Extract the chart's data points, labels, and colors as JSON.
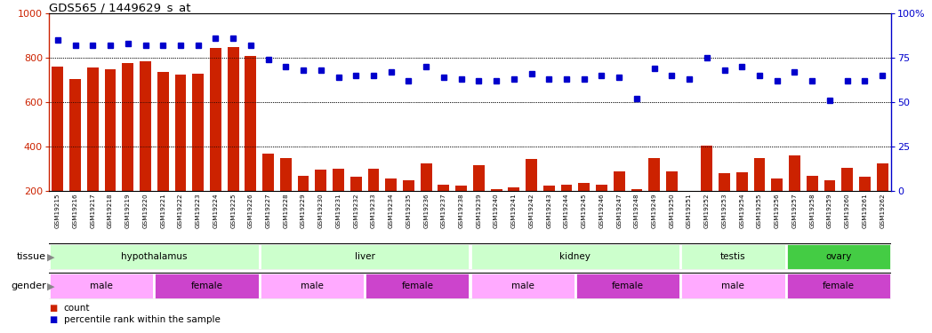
{
  "title": "GDS565 / 1449629_s_at",
  "samples": [
    "GSM19215",
    "GSM19216",
    "GSM19217",
    "GSM19218",
    "GSM19219",
    "GSM19220",
    "GSM19221",
    "GSM19222",
    "GSM19223",
    "GSM19224",
    "GSM19225",
    "GSM19226",
    "GSM19227",
    "GSM19228",
    "GSM19229",
    "GSM19230",
    "GSM19231",
    "GSM19232",
    "GSM19233",
    "GSM19234",
    "GSM19235",
    "GSM19236",
    "GSM19237",
    "GSM19238",
    "GSM19239",
    "GSM19240",
    "GSM19241",
    "GSM19242",
    "GSM19243",
    "GSM19244",
    "GSM19245",
    "GSM19246",
    "GSM19247",
    "GSM19248",
    "GSM19249",
    "GSM19250",
    "GSM19251",
    "GSM19252",
    "GSM19253",
    "GSM19254",
    "GSM19255",
    "GSM19256",
    "GSM19257",
    "GSM19258",
    "GSM19259",
    "GSM19260",
    "GSM19261",
    "GSM19262"
  ],
  "counts": [
    760,
    705,
    755,
    750,
    775,
    785,
    735,
    725,
    730,
    845,
    850,
    810,
    370,
    350,
    270,
    295,
    300,
    265,
    300,
    255,
    250,
    325,
    230,
    225,
    315,
    210,
    215,
    345,
    225,
    230,
    235,
    230,
    290,
    210,
    350,
    290,
    200,
    405,
    280,
    285,
    350,
    255,
    360,
    270,
    250,
    305,
    265,
    325
  ],
  "percentile": [
    85,
    82,
    82,
    82,
    83,
    82,
    82,
    82,
    82,
    86,
    86,
    82,
    74,
    70,
    68,
    68,
    64,
    65,
    65,
    67,
    62,
    70,
    64,
    63,
    62,
    62,
    63,
    66,
    63,
    63,
    63,
    65,
    64,
    52,
    69,
    65,
    63,
    75,
    68,
    70,
    65,
    62,
    67,
    62,
    51,
    62,
    62,
    65
  ],
  "ylim_left": [
    200,
    1000
  ],
  "ylim_right": [
    0,
    100
  ],
  "yticks_left": [
    200,
    400,
    600,
    800,
    1000
  ],
  "yticks_right": [
    0,
    25,
    50,
    75,
    100
  ],
  "bar_color": "#cc2200",
  "dot_color": "#0000cc",
  "tissue_groups": [
    {
      "label": "hypothalamus",
      "start": 0,
      "end": 11,
      "color": "#ccffcc"
    },
    {
      "label": "liver",
      "start": 12,
      "end": 23,
      "color": "#ccffcc"
    },
    {
      "label": "kidney",
      "start": 24,
      "end": 35,
      "color": "#ccffcc"
    },
    {
      "label": "testis",
      "start": 36,
      "end": 41,
      "color": "#ccffcc"
    },
    {
      "label": "ovary",
      "start": 42,
      "end": 47,
      "color": "#44cc44"
    }
  ],
  "gender_groups": [
    {
      "label": "male",
      "start": 0,
      "end": 5,
      "color": "#ffaaff"
    },
    {
      "label": "female",
      "start": 6,
      "end": 11,
      "color": "#cc44cc"
    },
    {
      "label": "male",
      "start": 12,
      "end": 17,
      "color": "#ffaaff"
    },
    {
      "label": "female",
      "start": 18,
      "end": 23,
      "color": "#cc44cc"
    },
    {
      "label": "male",
      "start": 24,
      "end": 29,
      "color": "#ffaaff"
    },
    {
      "label": "female",
      "start": 30,
      "end": 35,
      "color": "#cc44cc"
    },
    {
      "label": "male",
      "start": 36,
      "end": 41,
      "color": "#ffaaff"
    },
    {
      "label": "female",
      "start": 42,
      "end": 47,
      "color": "#cc44cc"
    }
  ],
  "legend_items": [
    {
      "label": "count",
      "color": "#cc2200"
    },
    {
      "label": "percentile rank within the sample",
      "color": "#0000cc"
    }
  ],
  "xtick_bg_color": "#cccccc",
  "tissue_label_color": "#888888",
  "gender_label_color": "#888888"
}
